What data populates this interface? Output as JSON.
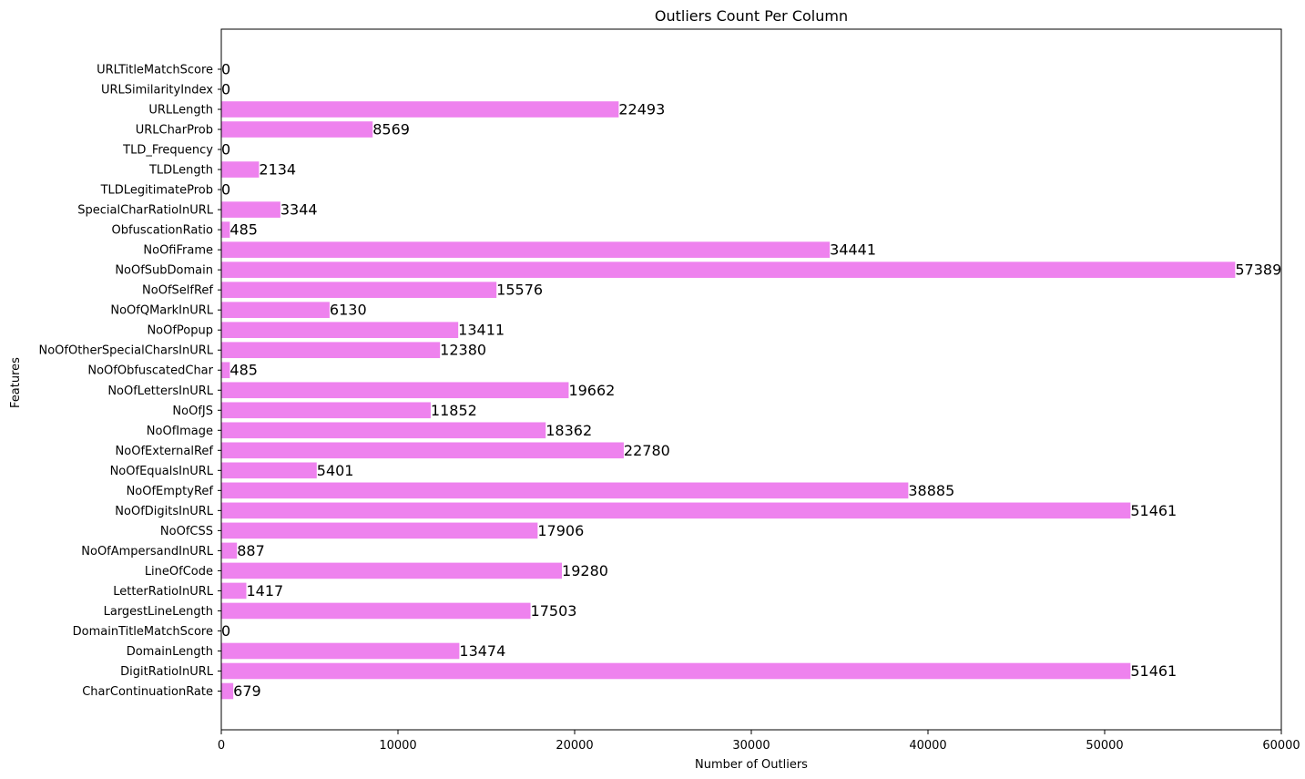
{
  "chart_data": {
    "type": "bar",
    "orientation": "horizontal",
    "title": "Outliers Count Per Column",
    "xlabel": "Number of Outliers",
    "ylabel": "Features",
    "xlim": [
      0,
      60000
    ],
    "xticks": [
      0,
      10000,
      20000,
      30000,
      40000,
      50000,
      60000
    ],
    "grid": false,
    "bar_color": "#ee82ee",
    "categories": [
      "CharContinuationRate",
      "DigitRatioInURL",
      "DomainLength",
      "DomainTitleMatchScore",
      "LargestLineLength",
      "LetterRatioInURL",
      "LineOfCode",
      "NoOfAmpersandInURL",
      "NoOfCSS",
      "NoOfDigitsInURL",
      "NoOfEmptyRef",
      "NoOfEqualsInURL",
      "NoOfExternalRef",
      "NoOfImage",
      "NoOfJS",
      "NoOfLettersInURL",
      "NoOfObfuscatedChar",
      "NoOfOtherSpecialCharsInURL",
      "NoOfPopup",
      "NoOfQMarkInURL",
      "NoOfSelfRef",
      "NoOfSubDomain",
      "NoOfiFrame",
      "ObfuscationRatio",
      "SpecialCharRatioInURL",
      "TLDLegitimateProb",
      "TLDLength",
      "TLD_Frequency",
      "URLCharProb",
      "URLLength",
      "URLSimilarityIndex",
      "URLTitleMatchScore"
    ],
    "values": [
      679,
      51461,
      13474,
      0,
      17503,
      1417,
      19280,
      887,
      17906,
      51461,
      38885,
      5401,
      22780,
      18362,
      11852,
      19662,
      485,
      12380,
      13411,
      6130,
      15576,
      57389,
      34441,
      485,
      3344,
      0,
      2134,
      0,
      8569,
      22493,
      0,
      0
    ]
  }
}
